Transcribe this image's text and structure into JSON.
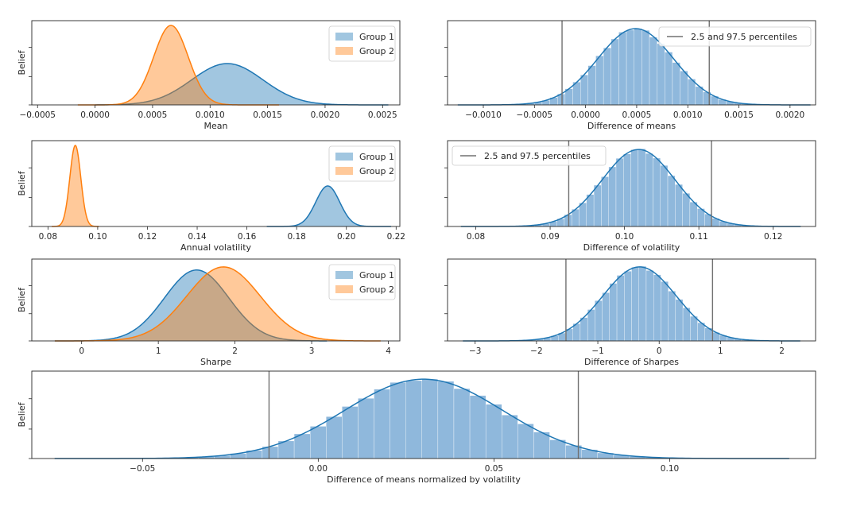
{
  "colors": {
    "group1": "#1f77b4",
    "group2": "#ff7f0e",
    "hist": "#8fb8dc",
    "vline": "#707070",
    "frame": "#262626"
  },
  "chart_data": [
    {
      "type": "area",
      "xlabel": "Mean",
      "ylabel": "Belief",
      "xlim": [
        -0.00055,
        0.00265
      ],
      "xticks": [
        -0.0005,
        0.0,
        0.0005,
        0.001,
        0.0015,
        0.002,
        0.0025
      ],
      "xtick_labels": [
        "−0.0005",
        "0.0000",
        "0.0005",
        "0.0010",
        "0.0015",
        "0.0020",
        "0.0025"
      ],
      "legend_position": "upper right",
      "series": [
        {
          "name": "Group 1",
          "distribution": "normal",
          "center": 0.00115,
          "sd": 0.00031,
          "peak": 0.52,
          "support": [
            0.0,
            0.00255
          ],
          "color": "group1"
        },
        {
          "name": "Group 2",
          "distribution": "normal",
          "center": 0.00066,
          "sd": 0.00015,
          "peak": 1.0,
          "support": [
            -0.00015,
            0.0016
          ],
          "color": "group2"
        }
      ]
    },
    {
      "type": "bar",
      "xlabel": "Difference of means",
      "ylabel": "",
      "xlim": [
        -0.00135,
        0.00225
      ],
      "xticks": [
        -0.001,
        -0.0005,
        0.0,
        0.0005,
        0.001,
        0.0015,
        0.002
      ],
      "xtick_labels": [
        "−0.0010",
        "−0.0005",
        "0.0000",
        "0.0005",
        "0.0010",
        "0.0015",
        "0.0020"
      ],
      "legend_position": "upper right",
      "legend": "2.5 and 97.5 percentiles",
      "distribution": {
        "center": 0.00049,
        "sd": 0.00037,
        "peak": 0.96,
        "support": [
          -0.00125,
          0.0022
        ]
      },
      "percentiles": [
        -0.00023,
        0.00121
      ]
    },
    {
      "type": "area",
      "xlabel": "Annual volatility",
      "ylabel": "Belief",
      "xlim": [
        0.0735,
        0.2215
      ],
      "xticks": [
        0.08,
        0.1,
        0.12,
        0.14,
        0.16,
        0.18,
        0.2,
        0.22
      ],
      "xtick_labels": [
        "0.08",
        "0.10",
        "0.12",
        "0.14",
        "0.16",
        "0.18",
        "0.20",
        "0.22"
      ],
      "legend_position": "upper right",
      "series": [
        {
          "name": "Group 1",
          "distribution": "normal",
          "center": 0.1925,
          "sd": 0.0048,
          "peak": 0.5,
          "support": [
            0.168,
            0.218
          ],
          "color": "group1"
        },
        {
          "name": "Group 2",
          "distribution": "normal",
          "center": 0.091,
          "sd": 0.0022,
          "peak": 1.0,
          "support": [
            0.0815,
            0.1005
          ],
          "color": "group2"
        }
      ]
    },
    {
      "type": "bar",
      "xlabel": "Difference of volatility",
      "ylabel": "",
      "xlim": [
        0.0762,
        0.1257
      ],
      "xticks": [
        0.08,
        0.09,
        0.1,
        0.11,
        0.12
      ],
      "xtick_labels": [
        "0.08",
        "0.09",
        "0.10",
        "0.11",
        "0.12"
      ],
      "legend_position": "upper left",
      "legend": "2.5 and 97.5 percentiles",
      "distribution": {
        "center": 0.1019,
        "sd": 0.0049,
        "peak": 0.95,
        "support": [
          0.078,
          0.1237
        ]
      },
      "percentiles": [
        0.0925,
        0.1117
      ]
    },
    {
      "type": "area",
      "xlabel": "Sharpe",
      "ylabel": "Belief",
      "xlim": [
        -0.65,
        4.15
      ],
      "xticks": [
        0,
        1,
        2,
        3,
        4
      ],
      "xtick_labels": [
        "0",
        "1",
        "2",
        "3",
        "4"
      ],
      "legend_position": "upper right",
      "series": [
        {
          "name": "Group 1",
          "distribution": "normal",
          "center": 1.5,
          "sd": 0.42,
          "peak": 0.92,
          "support": [
            -0.35,
            3.2
          ],
          "color": "group1"
        },
        {
          "name": "Group 2",
          "distribution": "normal",
          "center": 1.85,
          "sd": 0.48,
          "peak": 0.96,
          "support": [
            -0.35,
            3.9
          ],
          "color": "group2"
        }
      ]
    },
    {
      "type": "bar",
      "xlabel": "Difference of Sharpes",
      "ylabel": "",
      "xlim": [
        -3.45,
        2.55
      ],
      "xticks": [
        -3,
        -2,
        -1,
        0,
        1,
        2
      ],
      "xtick_labels": [
        "−3",
        "−2",
        "−1",
        "0",
        "1",
        "2"
      ],
      "distribution": {
        "center": -0.32,
        "sd": 0.6,
        "peak": 0.96,
        "support": [
          -3.2,
          2.3
        ]
      },
      "percentiles": [
        -1.52,
        0.87
      ]
    },
    {
      "type": "bar",
      "xlabel": "Difference of means normalized by volatility",
      "ylabel": "Belief",
      "xlim": [
        -0.0815,
        0.1415
      ],
      "xticks": [
        -0.05,
        0.0,
        0.05,
        0.1
      ],
      "xtick_labels": [
        "−0.05",
        "0.00",
        "0.05",
        "0.10"
      ],
      "distribution": {
        "center": 0.03,
        "sd": 0.0225,
        "peak": 0.96,
        "support": [
          -0.075,
          0.134
        ]
      },
      "percentiles": [
        -0.014,
        0.074
      ]
    }
  ]
}
